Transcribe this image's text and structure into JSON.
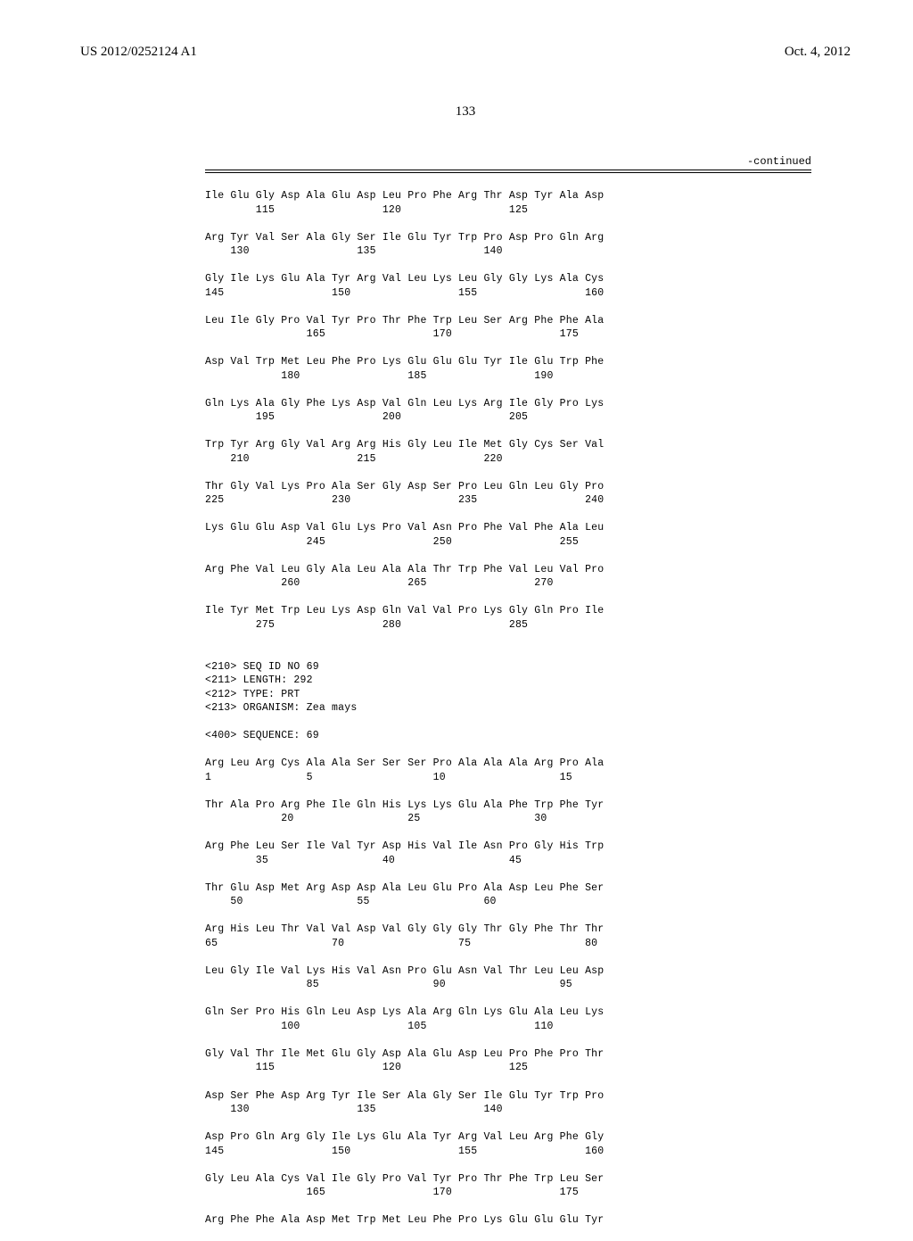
{
  "header": {
    "pub_number": "US 2012/0252124 A1",
    "pub_date": "Oct. 4, 2012"
  },
  "page_number": "133",
  "continued_label": "-continued",
  "seq68_rows": [
    {
      "aa": "Ile Glu Gly Asp Ala Glu Asp Leu Pro Phe Arg Thr Asp Tyr Ala Asp",
      "nums": "        115                 120                 125"
    },
    {
      "aa": "Arg Tyr Val Ser Ala Gly Ser Ile Glu Tyr Trp Pro Asp Pro Gln Arg",
      "nums": "    130                 135                 140"
    },
    {
      "aa": "Gly Ile Lys Glu Ala Tyr Arg Val Leu Lys Leu Gly Gly Lys Ala Cys",
      "nums": "145                 150                 155                 160"
    },
    {
      "aa": "Leu Ile Gly Pro Val Tyr Pro Thr Phe Trp Leu Ser Arg Phe Phe Ala",
      "nums": "                165                 170                 175"
    },
    {
      "aa": "Asp Val Trp Met Leu Phe Pro Lys Glu Glu Glu Tyr Ile Glu Trp Phe",
      "nums": "            180                 185                 190"
    },
    {
      "aa": "Gln Lys Ala Gly Phe Lys Asp Val Gln Leu Lys Arg Ile Gly Pro Lys",
      "nums": "        195                 200                 205"
    },
    {
      "aa": "Trp Tyr Arg Gly Val Arg Arg His Gly Leu Ile Met Gly Cys Ser Val",
      "nums": "    210                 215                 220"
    },
    {
      "aa": "Thr Gly Val Lys Pro Ala Ser Gly Asp Ser Pro Leu Gln Leu Gly Pro",
      "nums": "225                 230                 235                 240"
    },
    {
      "aa": "Lys Glu Glu Asp Val Glu Lys Pro Val Asn Pro Phe Val Phe Ala Leu",
      "nums": "                245                 250                 255"
    },
    {
      "aa": "Arg Phe Val Leu Gly Ala Leu Ala Ala Thr Trp Phe Val Leu Val Pro",
      "nums": "            260                 265                 270"
    },
    {
      "aa": "Ile Tyr Met Trp Leu Lys Asp Gln Val Val Pro Lys Gly Gln Pro Ile",
      "nums": "        275                 280                 285"
    }
  ],
  "seq69_header": [
    "<210> SEQ ID NO 69",
    "<211> LENGTH: 292",
    "<212> TYPE: PRT",
    "<213> ORGANISM: Zea mays",
    "",
    "<400> SEQUENCE: 69"
  ],
  "seq69_rows": [
    {
      "aa": "Arg Leu Arg Cys Ala Ala Ser Ser Ser Pro Ala Ala Ala Arg Pro Ala",
      "nums": "1               5                   10                  15"
    },
    {
      "aa": "Thr Ala Pro Arg Phe Ile Gln His Lys Lys Glu Ala Phe Trp Phe Tyr",
      "nums": "            20                  25                  30"
    },
    {
      "aa": "Arg Phe Leu Ser Ile Val Tyr Asp His Val Ile Asn Pro Gly His Trp",
      "nums": "        35                  40                  45"
    },
    {
      "aa": "Thr Glu Asp Met Arg Asp Asp Ala Leu Glu Pro Ala Asp Leu Phe Ser",
      "nums": "    50                  55                  60"
    },
    {
      "aa": "Arg His Leu Thr Val Val Asp Val Gly Gly Gly Thr Gly Phe Thr Thr",
      "nums": "65                  70                  75                  80"
    },
    {
      "aa": "Leu Gly Ile Val Lys His Val Asn Pro Glu Asn Val Thr Leu Leu Asp",
      "nums": "                85                  90                  95"
    },
    {
      "aa": "Gln Ser Pro His Gln Leu Asp Lys Ala Arg Gln Lys Glu Ala Leu Lys",
      "nums": "            100                 105                 110"
    },
    {
      "aa": "Gly Val Thr Ile Met Glu Gly Asp Ala Glu Asp Leu Pro Phe Pro Thr",
      "nums": "        115                 120                 125"
    },
    {
      "aa": "Asp Ser Phe Asp Arg Tyr Ile Ser Ala Gly Ser Ile Glu Tyr Trp Pro",
      "nums": "    130                 135                 140"
    },
    {
      "aa": "Asp Pro Gln Arg Gly Ile Lys Glu Ala Tyr Arg Val Leu Arg Phe Gly",
      "nums": "145                 150                 155                 160"
    },
    {
      "aa": "Gly Leu Ala Cys Val Ile Gly Pro Val Tyr Pro Thr Phe Trp Leu Ser",
      "nums": "                165                 170                 175"
    },
    {
      "aa": "Arg Phe Phe Ala Asp Met Trp Met Leu Phe Pro Lys Glu Glu Glu Tyr",
      "nums": ""
    }
  ]
}
